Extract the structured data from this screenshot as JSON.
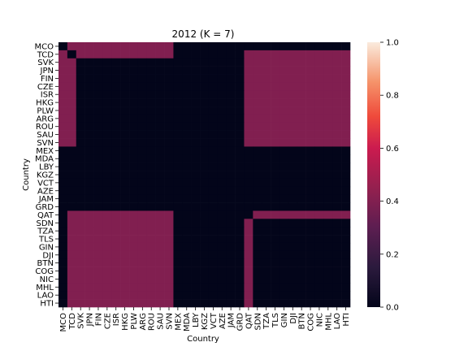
{
  "chart_data": {
    "type": "heatmap",
    "title": "2012 (K = 7)",
    "xlabel": "Country",
    "ylabel": "Country",
    "tick_labels": [
      "MCO",
      "TCD",
      "SVK",
      "JPN",
      "FIN",
      "CZE",
      "ISR",
      "HKG",
      "PLW",
      "ARG",
      "ROU",
      "SAU",
      "SVN",
      "MEX",
      "MDA",
      "LBY",
      "KGZ",
      "VCT",
      "AZE",
      "JAM",
      "GRD",
      "QAT",
      "SDN",
      "TZA",
      "TLS",
      "GIN",
      "DJI",
      "BTN",
      "COG",
      "NIC",
      "MHL",
      "LAO",
      "HTI"
    ],
    "colorbar": {
      "range": [
        0.0,
        1.0
      ],
      "tick_labels": [
        "0.0",
        "0.2",
        "0.4",
        "0.6",
        "0.8",
        "1.0"
      ],
      "tick_values": [
        0.0,
        0.2,
        0.4,
        0.6,
        0.8,
        1.0
      ],
      "colormap": "rocket"
    },
    "value_range": [
      0.0,
      1.0
    ],
    "block_structure": {
      "description_values": "background 0.0; off-diagonal linked blocks ~0.4",
      "low_value": 0.0,
      "high_value": 0.4
    },
    "grid": false,
    "legend": "colorbar-right"
  }
}
